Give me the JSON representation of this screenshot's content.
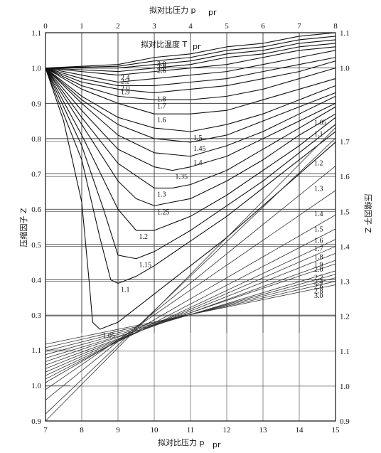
{
  "chart_data": {
    "type": "line",
    "upper_panel": {
      "title": "拟对比压力 p",
      "title_subscript": "pr",
      "param_label": "拟对比温度 T",
      "param_subscript": "pr",
      "y_label_left": "压缩因子 Z",
      "y_label_right": "压缩因子 Z",
      "x_range": [
        0,
        8
      ],
      "x_ticks": [
        "0",
        "1",
        "2",
        "3",
        "4",
        "5",
        "6",
        "7",
        "8"
      ],
      "y_range_left": [
        0.25,
        1.1
      ],
      "y_ticks_left": [
        "1.1",
        "1.0",
        "0.9",
        "0.8",
        "0.7",
        "0.6",
        "0.5",
        "0.4",
        "0.3"
      ],
      "right_axis_overlap": {
        "y_range": [
          0.9,
          1.1
        ],
        "ticks": [
          "1.1",
          "1.0"
        ]
      },
      "curves": [
        {
          "name": "1.05",
          "points": [
            [
              0,
              1.0
            ],
            [
              0.5,
              0.85
            ],
            [
              1.0,
              0.62
            ],
            [
              1.2,
              0.4
            ],
            [
              1.3,
              0.28
            ],
            [
              1.5,
              0.26
            ],
            [
              2.0,
              0.28
            ],
            [
              3,
              0.36
            ],
            [
              4,
              0.44
            ],
            [
              5,
              0.52
            ],
            [
              6,
              0.61
            ],
            [
              7,
              0.7
            ],
            [
              8,
              0.79
            ]
          ]
        },
        {
          "name": "1.1",
          "points": [
            [
              0,
              1.0
            ],
            [
              0.5,
              0.87
            ],
            [
              1.0,
              0.74
            ],
            [
              1.5,
              0.52
            ],
            [
              1.8,
              0.4
            ],
            [
              2.0,
              0.39
            ],
            [
              2.5,
              0.41
            ],
            [
              3,
              0.44
            ],
            [
              4,
              0.51
            ],
            [
              5,
              0.58
            ],
            [
              6,
              0.66
            ],
            [
              7,
              0.74
            ],
            [
              8,
              0.82
            ]
          ]
        },
        {
          "name": "1.15",
          "points": [
            [
              0,
              1.0
            ],
            [
              1.0,
              0.78
            ],
            [
              1.6,
              0.6
            ],
            [
              2.0,
              0.47
            ],
            [
              2.5,
              0.46
            ],
            [
              3,
              0.48
            ],
            [
              4,
              0.54
            ],
            [
              5,
              0.61
            ],
            [
              6,
              0.68
            ],
            [
              7,
              0.76
            ],
            [
              8,
              0.84
            ]
          ]
        },
        {
          "name": "1.2",
          "points": [
            [
              0,
              1.0
            ],
            [
              1.0,
              0.81
            ],
            [
              2.0,
              0.6
            ],
            [
              2.5,
              0.54
            ],
            [
              3,
              0.54
            ],
            [
              4,
              0.58
            ],
            [
              5,
              0.64
            ],
            [
              6,
              0.71
            ],
            [
              7,
              0.78
            ],
            [
              8,
              0.86
            ]
          ]
        },
        {
          "name": "1.25",
          "points": [
            [
              0,
              1.0
            ],
            [
              1.0,
              0.84
            ],
            [
              2.0,
              0.68
            ],
            [
              2.5,
              0.63
            ],
            [
              3,
              0.61
            ],
            [
              4,
              0.63
            ],
            [
              5,
              0.68
            ],
            [
              6,
              0.74
            ],
            [
              7,
              0.81
            ],
            [
              8,
              0.87
            ]
          ]
        },
        {
          "name": "1.3",
          "points": [
            [
              0,
              1.0
            ],
            [
              1.0,
              0.86
            ],
            [
              2.0,
              0.73
            ],
            [
              3,
              0.66
            ],
            [
              3.5,
              0.66
            ],
            [
              4,
              0.67
            ],
            [
              5,
              0.71
            ],
            [
              6,
              0.77
            ],
            [
              7,
              0.83
            ],
            [
              8,
              0.89
            ]
          ]
        },
        {
          "name": "1.35",
          "points": [
            [
              0,
              1.0
            ],
            [
              1.0,
              0.88
            ],
            [
              2.0,
              0.77
            ],
            [
              3,
              0.72
            ],
            [
              3.5,
              0.71
            ],
            [
              4,
              0.72
            ],
            [
              5,
              0.75
            ],
            [
              6,
              0.8
            ],
            [
              7,
              0.85
            ],
            [
              8,
              0.9
            ]
          ]
        },
        {
          "name": "1.4",
          "points": [
            [
              0,
              1.0
            ],
            [
              1.0,
              0.9
            ],
            [
              2.0,
              0.81
            ],
            [
              3,
              0.76
            ],
            [
              4,
              0.75
            ],
            [
              5,
              0.78
            ],
            [
              6,
              0.82
            ],
            [
              7,
              0.87
            ],
            [
              8,
              0.92
            ]
          ]
        },
        {
          "name": "1.45",
          "points": [
            [
              0,
              1.0
            ],
            [
              1.0,
              0.91
            ],
            [
              2.0,
              0.84
            ],
            [
              3,
              0.8
            ],
            [
              4,
              0.79
            ],
            [
              5,
              0.81
            ],
            [
              6,
              0.85
            ],
            [
              7,
              0.89
            ],
            [
              8,
              0.93
            ]
          ]
        },
        {
          "name": "1.5",
          "points": [
            [
              0,
              1.0
            ],
            [
              1.0,
              0.92
            ],
            [
              2.0,
              0.86
            ],
            [
              3,
              0.83
            ],
            [
              4,
              0.82
            ],
            [
              5,
              0.84
            ],
            [
              6,
              0.87
            ],
            [
              7,
              0.91
            ],
            [
              8,
              0.95
            ]
          ]
        },
        {
          "name": "1.6",
          "points": [
            [
              0,
              1.0
            ],
            [
              1.0,
              0.94
            ],
            [
              2.0,
              0.9
            ],
            [
              3,
              0.87
            ],
            [
              4,
              0.87
            ],
            [
              5,
              0.88
            ],
            [
              6,
              0.91
            ],
            [
              7,
              0.94
            ],
            [
              8,
              0.97
            ]
          ]
        },
        {
          "name": "1.7",
          "points": [
            [
              0,
              1.0
            ],
            [
              1.0,
              0.95
            ],
            [
              2.0,
              0.92
            ],
            [
              3,
              0.91
            ],
            [
              4,
              0.91
            ],
            [
              5,
              0.92
            ],
            [
              6,
              0.94
            ],
            [
              7,
              0.97
            ],
            [
              8,
              1.0
            ]
          ]
        },
        {
          "name": "1.8",
          "points": [
            [
              0,
              1.0
            ],
            [
              1.0,
              0.96
            ],
            [
              2.0,
              0.94
            ],
            [
              3,
              0.93
            ],
            [
              4,
              0.94
            ],
            [
              5,
              0.95
            ],
            [
              6,
              0.97
            ],
            [
              7,
              0.99
            ],
            [
              8,
              1.02
            ]
          ]
        },
        {
          "name": "1.9",
          "points": [
            [
              0,
              1.0
            ],
            [
              1.0,
              0.97
            ],
            [
              2.0,
              0.95
            ],
            [
              3,
              0.95
            ],
            [
              4,
              0.96
            ],
            [
              5,
              0.97
            ],
            [
              6,
              0.99
            ],
            [
              7,
              1.01
            ],
            [
              8,
              1.03
            ]
          ]
        },
        {
          "name": "2.0",
          "points": [
            [
              0,
              1.0
            ],
            [
              1.0,
              0.98
            ],
            [
              2.0,
              0.96
            ],
            [
              3,
              0.97
            ],
            [
              4,
              0.98
            ],
            [
              5,
              0.99
            ],
            [
              6,
              1.01
            ],
            [
              7,
              1.03
            ],
            [
              8,
              1.05
            ]
          ]
        },
        {
          "name": "2.2",
          "points": [
            [
              0,
              1.0
            ],
            [
              1.0,
              0.99
            ],
            [
              2.0,
              0.98
            ],
            [
              3,
              0.99
            ],
            [
              4,
              1.0
            ],
            [
              5,
              1.01
            ],
            [
              6,
              1.03
            ],
            [
              7,
              1.05
            ],
            [
              8,
              1.06
            ]
          ]
        },
        {
          "name": "2.4",
          "points": [
            [
              0,
              1.0
            ],
            [
              1.0,
              0.995
            ],
            [
              2.0,
              0.99
            ],
            [
              3,
              1.0
            ],
            [
              4,
              1.01
            ],
            [
              5,
              1.03
            ],
            [
              6,
              1.04
            ],
            [
              7,
              1.06
            ],
            [
              8,
              1.07
            ]
          ]
        },
        {
          "name": "2.6",
          "points": [
            [
              0,
              1.0
            ],
            [
              2.0,
              1.0
            ],
            [
              3,
              1.01
            ],
            [
              4,
              1.02
            ],
            [
              5,
              1.04
            ],
            [
              6,
              1.05
            ],
            [
              7,
              1.07
            ],
            [
              8,
              1.08
            ]
          ]
        },
        {
          "name": "2.8",
          "points": [
            [
              0,
              1.0
            ],
            [
              2.0,
              1.005
            ],
            [
              3,
              1.02
            ],
            [
              4,
              1.03
            ],
            [
              5,
              1.05
            ],
            [
              6,
              1.06
            ],
            [
              7,
              1.08
            ],
            [
              8,
              1.09
            ]
          ]
        },
        {
          "name": "3.0",
          "points": [
            [
              0,
              1.0
            ],
            [
              2.0,
              1.01
            ],
            [
              3,
              1.03
            ],
            [
              4,
              1.04
            ],
            [
              5,
              1.06
            ],
            [
              6,
              1.07
            ],
            [
              7,
              1.09
            ],
            [
              8,
              1.1
            ]
          ]
        }
      ]
    },
    "lower_panel": {
      "x_label": "拟对比压力 p",
      "x_subscript": "pr",
      "x_range": [
        7,
        15
      ],
      "x_ticks": [
        "7",
        "8",
        "9",
        "10",
        "11",
        "12",
        "13",
        "14",
        "15"
      ],
      "y_range_right": [
        0.9,
        1.8
      ],
      "y_ticks_right": [
        "1.7",
        "1.6",
        "1.5",
        "1.4",
        "1.3",
        "1.2",
        "1.1",
        "1.0",
        "0.9"
      ],
      "y_label_right": "压缩因子 Z",
      "y_range_left_inset": [
        0.9,
        1.1
      ],
      "y_ticks_left_inset": [
        "1.1",
        "1.0",
        "0.9"
      ],
      "curves": [
        {
          "name": "1.05",
          "points": [
            [
              7,
              0.9
            ],
            [
              15,
              1.74
            ]
          ]
        },
        {
          "name": "1.1",
          "points": [
            [
              7,
              0.92
            ],
            [
              15,
              1.71
            ]
          ]
        },
        {
          "name": "1.2",
          "points": [
            [
              7,
              0.96
            ],
            [
              15,
              1.63
            ]
          ]
        },
        {
          "name": "1.3",
          "points": [
            [
              7,
              0.99
            ],
            [
              15,
              1.56
            ]
          ]
        },
        {
          "name": "1.4",
          "points": [
            [
              7,
              1.01
            ],
            [
              15,
              1.49
            ]
          ]
        },
        {
          "name": "1.5",
          "points": [
            [
              7,
              1.02
            ],
            [
              15,
              1.45
            ]
          ]
        },
        {
          "name": "1.6",
          "points": [
            [
              7,
              1.03
            ],
            [
              15,
              1.42
            ]
          ]
        },
        {
          "name": "1.7",
          "points": [
            [
              7,
              1.04
            ],
            [
              15,
              1.4
            ]
          ]
        },
        {
          "name": "1.8",
          "points": [
            [
              7,
              1.05
            ],
            [
              15,
              1.38
            ]
          ]
        },
        {
          "name": "1.9",
          "points": [
            [
              7,
              1.06
            ],
            [
              15,
              1.36
            ]
          ]
        },
        {
          "name": "2.0",
          "points": [
            [
              7,
              1.07
            ],
            [
              15,
              1.35
            ]
          ]
        },
        {
          "name": "2.2",
          "points": [
            [
              7,
              1.08
            ],
            [
              15,
              1.33
            ]
          ]
        },
        {
          "name": "2.4",
          "points": [
            [
              7,
              1.09
            ],
            [
              15,
              1.32
            ]
          ]
        },
        {
          "name": "2.6",
          "points": [
            [
              7,
              1.1
            ],
            [
              15,
              1.31
            ]
          ]
        },
        {
          "name": "2.8",
          "points": [
            [
              7,
              1.11
            ],
            [
              15,
              1.3
            ]
          ]
        },
        {
          "name": "3.0",
          "points": [
            [
              7,
              1.12
            ],
            [
              15,
              1.29
            ]
          ]
        }
      ]
    }
  }
}
